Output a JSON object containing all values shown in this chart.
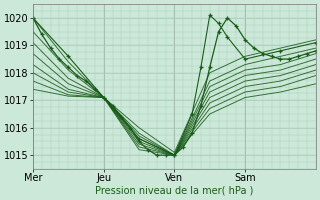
{
  "xlabel": "Pression niveau de la mer( hPa )",
  "ylim": [
    1014.5,
    1020.5
  ],
  "xlim": [
    0,
    96
  ],
  "yticks": [
    1015,
    1016,
    1017,
    1018,
    1019,
    1020
  ],
  "xtick_positions": [
    0,
    24,
    48,
    72
  ],
  "xtick_labels": [
    "Mer",
    "Jeu",
    "Ven",
    "Sam"
  ],
  "bg_color": "#cce8d8",
  "line_color": "#1a5c1a",
  "grid_color": "#aaccbb",
  "ensemble_lines": [
    {
      "x": [
        0,
        12,
        24,
        36,
        48,
        60,
        72,
        84,
        96
      ],
      "y": [
        1020.0,
        1018.4,
        1017.1,
        1016.0,
        1015.1,
        1018.0,
        1018.6,
        1018.9,
        1019.2
      ]
    },
    {
      "x": [
        0,
        12,
        24,
        36,
        48,
        60,
        72,
        84,
        96
      ],
      "y": [
        1019.5,
        1018.1,
        1017.1,
        1015.8,
        1015.0,
        1017.7,
        1018.3,
        1018.6,
        1018.9
      ]
    },
    {
      "x": [
        0,
        12,
        24,
        36,
        48,
        60,
        72,
        84,
        96
      ],
      "y": [
        1019.1,
        1017.8,
        1017.1,
        1015.7,
        1015.0,
        1017.5,
        1018.1,
        1018.3,
        1018.7
      ]
    },
    {
      "x": [
        0,
        12,
        24,
        36,
        48,
        60,
        72,
        84,
        96
      ],
      "y": [
        1018.7,
        1017.6,
        1017.1,
        1015.6,
        1015.0,
        1017.3,
        1017.9,
        1018.1,
        1018.5
      ]
    },
    {
      "x": [
        0,
        12,
        24,
        36,
        48,
        60,
        72,
        84,
        96
      ],
      "y": [
        1018.3,
        1017.4,
        1017.1,
        1015.5,
        1015.0,
        1017.1,
        1017.7,
        1017.9,
        1018.3
      ]
    },
    {
      "x": [
        0,
        12,
        24,
        36,
        48,
        60,
        72,
        84,
        96
      ],
      "y": [
        1018.0,
        1017.3,
        1017.1,
        1015.4,
        1015.0,
        1016.9,
        1017.5,
        1017.7,
        1018.1
      ]
    },
    {
      "x": [
        0,
        12,
        24,
        36,
        48,
        60,
        72,
        84,
        96
      ],
      "y": [
        1017.7,
        1017.2,
        1017.1,
        1015.3,
        1015.0,
        1016.7,
        1017.3,
        1017.5,
        1017.9
      ]
    },
    {
      "x": [
        0,
        12,
        24,
        36,
        48,
        60,
        72,
        84,
        96
      ],
      "y": [
        1017.4,
        1017.15,
        1017.1,
        1015.2,
        1015.0,
        1016.5,
        1017.1,
        1017.3,
        1017.6
      ]
    }
  ],
  "detailed_line": {
    "x": [
      0,
      3,
      6,
      9,
      12,
      15,
      18,
      21,
      24,
      27,
      30,
      33,
      36,
      39,
      42,
      45,
      48,
      51,
      54,
      57,
      60,
      63,
      66,
      69,
      72,
      75,
      78,
      81,
      84,
      87,
      90,
      93,
      96
    ],
    "y": [
      1020.0,
      1019.4,
      1018.9,
      1018.5,
      1018.2,
      1017.9,
      1017.7,
      1017.4,
      1017.1,
      1016.8,
      1016.4,
      1016.0,
      1015.5,
      1015.2,
      1015.0,
      1015.0,
      1015.0,
      1015.3,
      1015.8,
      1016.8,
      1018.2,
      1019.5,
      1020.0,
      1019.7,
      1019.2,
      1018.9,
      1018.7,
      1018.6,
      1018.5,
      1018.5,
      1018.6,
      1018.7,
      1018.8
    ]
  },
  "peak_line": {
    "x": [
      0,
      12,
      24,
      36,
      48,
      54,
      57,
      60,
      63,
      66,
      72,
      84,
      96
    ],
    "y": [
      1020.0,
      1018.6,
      1017.1,
      1015.6,
      1015.0,
      1016.5,
      1018.2,
      1020.1,
      1019.8,
      1019.3,
      1018.5,
      1018.8,
      1019.1
    ]
  }
}
